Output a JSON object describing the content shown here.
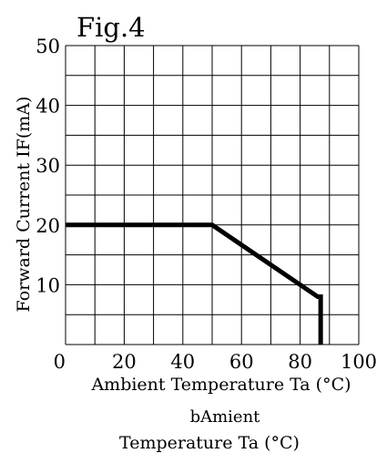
{
  "chart_data": {
    "type": "line",
    "title": "Fig.4",
    "ylabel": "Forward Current IF(mA)",
    "xlabel": "Ambient Temperature Ta (°C)",
    "xlabel_lines": [
      "bAmient",
      "Temperature Ta (°C)"
    ],
    "xlim": [
      0,
      100
    ],
    "ylim": [
      0,
      50
    ],
    "x_ticks": [
      0,
      20,
      40,
      60,
      80,
      100
    ],
    "y_ticks": [
      10,
      20,
      30,
      40,
      50
    ],
    "grid": true,
    "series": [
      {
        "x": [
          0,
          50,
          86,
          87,
          87
        ],
        "y": [
          20,
          20,
          8,
          8,
          0
        ]
      }
    ],
    "colors": {
      "line": "#000000",
      "grid": "#000000"
    }
  }
}
